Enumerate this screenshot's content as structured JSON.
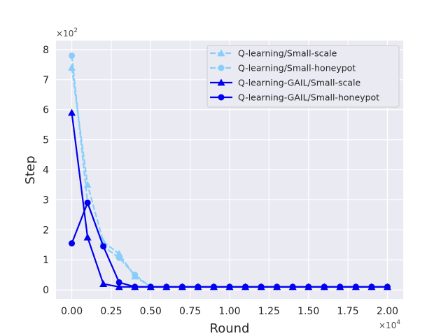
{
  "chart_data": {
    "type": "line",
    "xlabel": "Round",
    "ylabel": "Step",
    "x_offset_label": "×10",
    "x_offset_exp": "4",
    "y_offset_label": "×10",
    "y_offset_exp": "2",
    "xlim": [
      -0.1,
      2.1
    ],
    "ylim": [
      -0.3,
      8.3
    ],
    "x_ticks": [
      0.0,
      0.25,
      0.5,
      0.75,
      1.0,
      1.25,
      1.5,
      1.75,
      2.0
    ],
    "x_tick_labels": [
      "0.00",
      "0.25",
      "0.50",
      "0.75",
      "1.00",
      "1.25",
      "1.50",
      "1.75",
      "2.00"
    ],
    "y_ticks": [
      0,
      1,
      2,
      3,
      4,
      5,
      6,
      7,
      8
    ],
    "y_tick_labels": [
      "0",
      "1",
      "2",
      "3",
      "4",
      "5",
      "6",
      "7",
      "8"
    ],
    "grid": true,
    "legend_position": "top-right",
    "x": [
      0.0,
      0.1,
      0.2,
      0.3,
      0.4,
      0.5,
      0.6,
      0.7,
      0.8,
      0.9,
      1.0,
      1.1,
      1.2,
      1.3,
      1.4,
      1.5,
      1.6,
      1.7,
      1.8,
      1.9,
      2.0
    ],
    "series": [
      {
        "name": "Q-learning/Small-scale",
        "color": "#87cefa",
        "marker": "triangle",
        "dashed": true,
        "values": [
          7.4,
          3.5,
          1.6,
          1.2,
          0.45,
          0.1,
          0.1,
          0.1,
          0.1,
          0.1,
          0.1,
          0.1,
          0.1,
          0.1,
          0.1,
          0.1,
          0.1,
          0.1,
          0.1,
          0.1,
          0.1
        ]
      },
      {
        "name": "Q-learning/Small-honeypot",
        "color": "#87cefa",
        "marker": "circle",
        "dashed": true,
        "values": [
          7.8,
          2.9,
          1.45,
          1.07,
          0.5,
          0.1,
          0.1,
          0.1,
          0.1,
          0.1,
          0.1,
          0.1,
          0.1,
          0.1,
          0.1,
          0.1,
          0.1,
          0.1,
          0.1,
          0.1,
          0.1
        ]
      },
      {
        "name": "Q-learning-GAIL/Small-scale",
        "color": "#0000ee",
        "marker": "triangle",
        "dashed": false,
        "values": [
          5.9,
          1.75,
          0.2,
          0.1,
          0.1,
          0.1,
          0.1,
          0.1,
          0.1,
          0.1,
          0.1,
          0.1,
          0.1,
          0.1,
          0.1,
          0.1,
          0.1,
          0.1,
          0.1,
          0.1,
          0.1
        ]
      },
      {
        "name": "Q-learning-GAIL/Small-honeypot",
        "color": "#0000ee",
        "marker": "circle",
        "dashed": false,
        "values": [
          1.55,
          2.9,
          1.45,
          0.25,
          0.1,
          0.1,
          0.1,
          0.1,
          0.1,
          0.1,
          0.1,
          0.1,
          0.1,
          0.1,
          0.1,
          0.1,
          0.1,
          0.1,
          0.1,
          0.1,
          0.1
        ]
      }
    ]
  }
}
